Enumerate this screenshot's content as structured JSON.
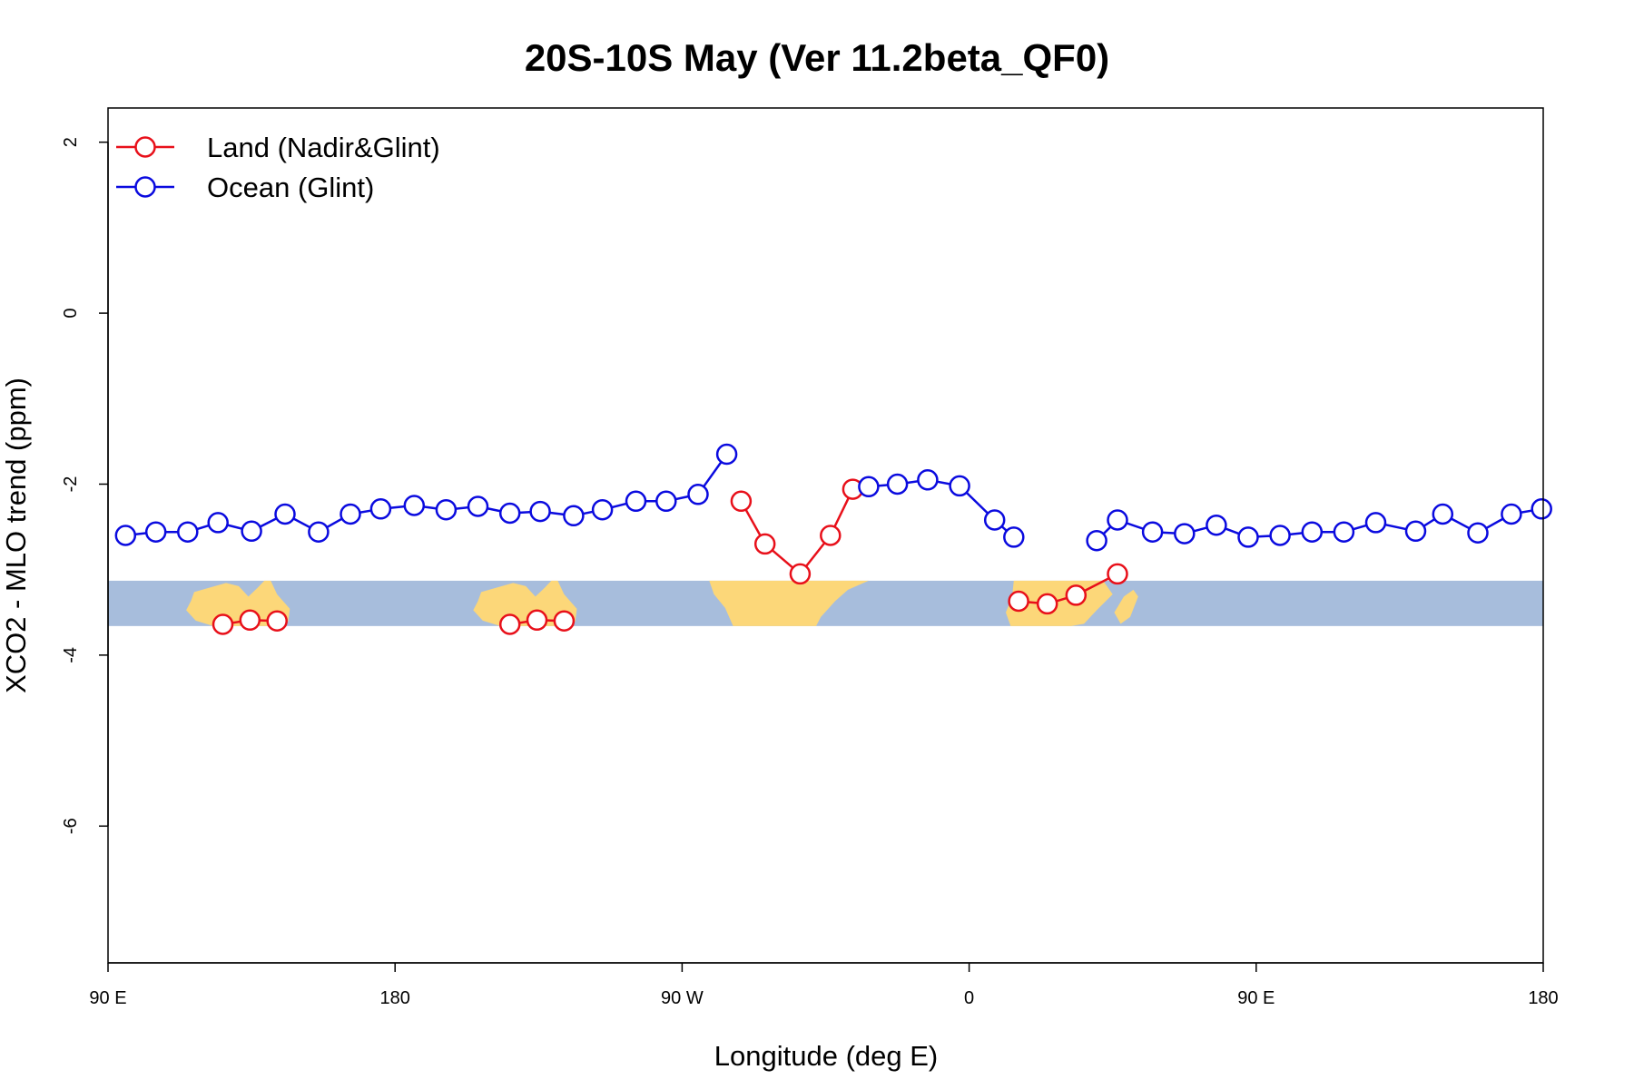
{
  "chart_data": {
    "type": "line",
    "title": "20S-10S May (Ver 11.2beta_QF0)",
    "xlabel": "Longitude (deg E)",
    "ylabel": "XCO2 - MLO trend (ppm)",
    "xlim": [
      90,
      540
    ],
    "ylim": [
      -7.6,
      2.4
    ],
    "x_ticks": [
      {
        "value": 90,
        "label": "90 E"
      },
      {
        "value": 180,
        "label": "180"
      },
      {
        "value": 270,
        "label": "90 W"
      },
      {
        "value": 360,
        "label": "0"
      },
      {
        "value": 450,
        "label": "90 E"
      },
      {
        "value": 540,
        "label": "180"
      }
    ],
    "y_ticks": [
      {
        "value": 2,
        "label": "2"
      },
      {
        "value": 0,
        "label": "0"
      },
      {
        "value": -2,
        "label": "-2"
      },
      {
        "value": -4,
        "label": "-4"
      },
      {
        "value": -6,
        "label": "-6"
      }
    ],
    "legend_position": "top-left",
    "map_band": {
      "y_top": -3.13,
      "y_bottom": -3.66,
      "ocean_color": "#a7bddc",
      "land_color": "#fcd779"
    },
    "series": [
      {
        "name": "Land (Nadir&Glint)",
        "color": "#e8101a",
        "segments": [
          [
            [
              126,
              -3.64
            ],
            [
              134.5,
              -3.59
            ],
            [
              143,
              -3.6
            ]
          ],
          [
            [
              288.5,
              -2.2
            ],
            [
              296,
              -2.7
            ],
            [
              307,
              -3.05
            ],
            [
              316.5,
              -2.6
            ],
            [
              323.5,
              -2.06
            ]
          ],
          [
            [
              375.5,
              -3.37
            ],
            [
              384.5,
              -3.4
            ],
            [
              393.5,
              -3.3
            ],
            [
              406.5,
              -3.05
            ]
          ],
          [
            [
              216,
              -3.64
            ],
            [
              224.5,
              -3.59
            ],
            [
              233,
              -3.6
            ]
          ]
        ]
      },
      {
        "name": "Ocean (Glint)",
        "color": "#0a0adf",
        "segments": [
          [
            [
              95.5,
              -2.6
            ],
            [
              105,
              -2.56
            ],
            [
              115,
              -2.56
            ],
            [
              124.5,
              -2.45
            ],
            [
              135,
              -2.55
            ],
            [
              145.5,
              -2.35
            ],
            [
              156,
              -2.56
            ],
            [
              166,
              -2.35
            ],
            [
              175.5,
              -2.29
            ],
            [
              186,
              -2.25
            ],
            [
              196,
              -2.3
            ],
            [
              206,
              -2.26
            ],
            [
              216,
              -2.34
            ],
            [
              225.5,
              -2.32
            ],
            [
              236,
              -2.37
            ],
            [
              245,
              -2.3
            ],
            [
              255.5,
              -2.2
            ],
            [
              265,
              -2.2
            ],
            [
              275,
              -2.12
            ],
            [
              284,
              -1.65
            ]
          ],
          [
            [
              328.5,
              -2.03
            ],
            [
              337.5,
              -2.0
            ],
            [
              347,
              -1.95
            ],
            [
              357,
              -2.02
            ],
            [
              368,
              -2.42
            ],
            [
              374,
              -2.62
            ]
          ],
          [
            [
              400,
              -2.66
            ],
            [
              406.5,
              -2.42
            ],
            [
              417.5,
              -2.56
            ],
            [
              427.5,
              -2.58
            ],
            [
              437.5,
              -2.48
            ],
            [
              447.5,
              -2.62
            ],
            [
              457.5,
              -2.6
            ],
            [
              467.5,
              -2.56
            ],
            [
              477.5,
              -2.56
            ],
            [
              487.5,
              -2.45
            ],
            [
              500,
              -2.55
            ],
            [
              508.5,
              -2.35
            ],
            [
              519.5,
              -2.57
            ],
            [
              530,
              -2.35
            ],
            [
              539.5,
              -2.29
            ]
          ]
        ]
      }
    ]
  }
}
